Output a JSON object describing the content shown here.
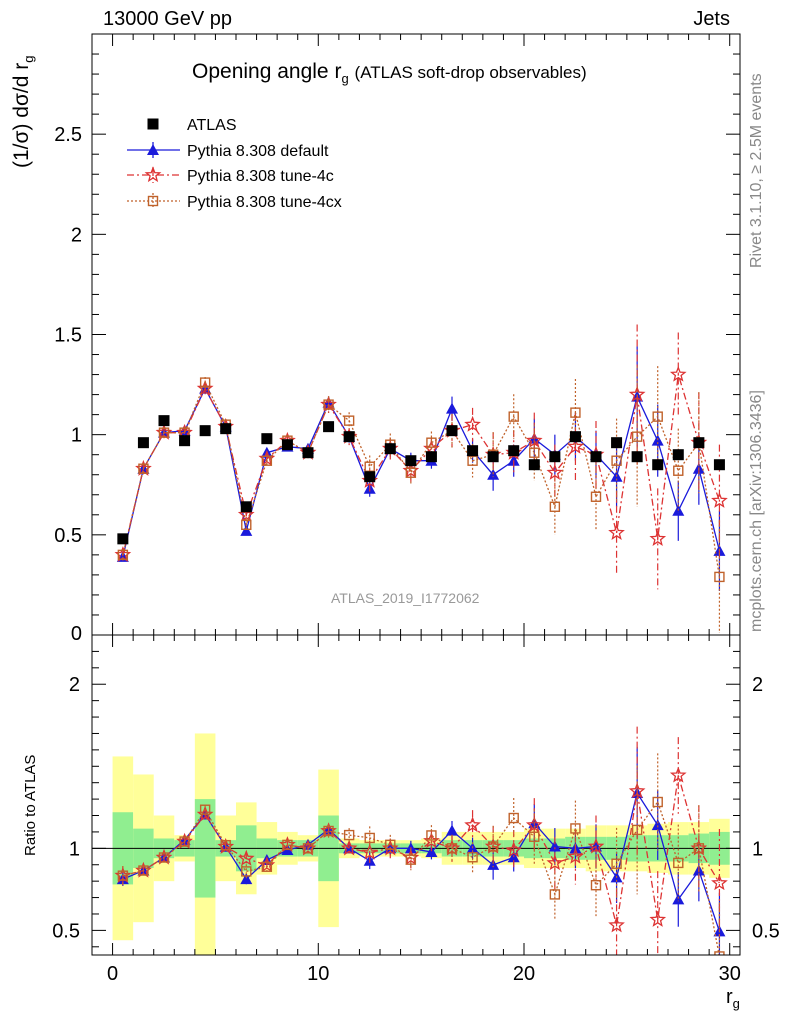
{
  "header": {
    "left": "13000 GeV pp",
    "right": "Jets"
  },
  "side_labels": {
    "rivet": "Rivet 3.1.10, ≥ 2.5M events",
    "mcplots": "mcplots.cern.ch [arXiv:1306.3436]"
  },
  "chart_data": {
    "type": "scatter",
    "title": "Opening angle r",
    "title_sub": "g",
    "title_suffix": "(ATLAS soft-drop observables)",
    "watermark": "ATLAS_2019_I1772062",
    "ylabel": "(1/σ) dσ/d r",
    "ylabel_sub": "g",
    "xlabel": "r",
    "xlabel_sub": "g",
    "ratio_ylabel": "Ratio to ATLAS",
    "xlim": [
      -1,
      30.5
    ],
    "ylim": [
      0,
      3.0
    ],
    "ratio_ylim": [
      0.35,
      2.3
    ],
    "xticks": [
      "0",
      "10",
      "20",
      "30"
    ],
    "yticks": [
      "0.5",
      "1",
      "1.5",
      "2",
      "2.5"
    ],
    "ytick0": "0",
    "ratio_yticks": [
      "0.5",
      "1",
      "2"
    ],
    "legend": [
      "ATLAS",
      "Pythia 8.308 default",
      "Pythia 8.308 tune-4c",
      "Pythia 8.308 tune-4cx"
    ],
    "colors": {
      "data": "#000000",
      "default": "#1a1adb",
      "tune4c": "#dd3333",
      "tune4cx": "#c0622b",
      "band_inner": "#90ee90",
      "band_outer": "#ffff99"
    },
    "x": [
      0.5,
      1.5,
      2.5,
      3.5,
      4.5,
      5.5,
      6.5,
      7.5,
      8.5,
      9.5,
      10.5,
      11.5,
      12.5,
      13.5,
      14.5,
      15.5,
      16.5,
      17.5,
      18.5,
      19.5,
      20.5,
      21.5,
      22.5,
      23.5,
      24.5,
      25.5,
      26.5,
      27.5,
      28.5,
      29.5
    ],
    "data": [
      0.48,
      0.96,
      1.07,
      0.97,
      1.02,
      1.03,
      0.64,
      0.98,
      0.95,
      0.91,
      1.04,
      0.99,
      0.79,
      0.93,
      0.87,
      0.89,
      1.02,
      0.92,
      0.89,
      0.92,
      0.85,
      0.89,
      0.99,
      0.89,
      0.96,
      0.89,
      0.85,
      0.9,
      0.96,
      0.85
    ],
    "series": [
      {
        "name": "Pythia 8.308 default",
        "values": [
          0.39,
          0.83,
          1.01,
          1.02,
          1.23,
          1.04,
          0.52,
          0.91,
          0.94,
          0.93,
          1.16,
          0.99,
          0.73,
          0.93,
          0.87,
          0.87,
          1.13,
          0.92,
          0.8,
          0.87,
          0.98,
          0.9,
          0.99,
          0.9,
          0.79,
          1.19,
          0.97,
          0.62,
          0.83,
          0.42
        ],
        "errors": [
          0.02,
          0.02,
          0.02,
          0.02,
          0.02,
          0.02,
          0.02,
          0.02,
          0.02,
          0.02,
          0.03,
          0.03,
          0.04,
          0.04,
          0.04,
          0.04,
          0.06,
          0.06,
          0.08,
          0.08,
          0.1,
          0.1,
          0.12,
          0.12,
          0.15,
          0.25,
          0.18,
          0.15,
          0.18,
          0.2
        ]
      },
      {
        "name": "Pythia 8.308 tune-4c",
        "values": [
          0.4,
          0.83,
          1.01,
          1.01,
          1.23,
          1.04,
          0.6,
          0.88,
          0.97,
          0.91,
          1.15,
          0.99,
          0.77,
          0.93,
          0.82,
          0.93,
          1.02,
          1.05,
          0.9,
          0.91,
          0.97,
          0.81,
          0.94,
          0.9,
          0.51,
          1.2,
          0.48,
          1.3,
          0.96,
          0.67
        ]
      },
      {
        "name": "Pythia 8.308 tune-4cx",
        "values": [
          0.4,
          0.83,
          1.01,
          1.01,
          1.26,
          1.05,
          0.55,
          0.87,
          0.97,
          0.91,
          1.15,
          1.07,
          0.84,
          0.95,
          0.81,
          0.96,
          1.02,
          0.87,
          0.9,
          1.09,
          0.91,
          0.64,
          1.11,
          0.69,
          0.87,
          0.99,
          1.09,
          0.82,
          0.96,
          0.29
        ]
      }
    ],
    "band_inner": [
      0.22,
      0.12,
      0.06,
      0.05,
      0.3,
      0.05,
      0.14,
      0.06,
      0.05,
      0.05,
      0.2,
      0.03,
      0.03,
      0.03,
      0.03,
      0.03,
      0.05,
      0.05,
      0.05,
      0.05,
      0.06,
      0.06,
      0.07,
      0.07,
      0.07,
      0.08,
      0.08,
      0.08,
      0.09,
      0.1
    ],
    "band_outer": [
      0.56,
      0.45,
      0.2,
      0.08,
      0.7,
      0.2,
      0.28,
      0.16,
      0.1,
      0.08,
      0.48,
      0.06,
      0.05,
      0.05,
      0.05,
      0.06,
      0.1,
      0.1,
      0.1,
      0.1,
      0.12,
      0.12,
      0.12,
      0.14,
      0.14,
      0.14,
      0.15,
      0.16,
      0.16,
      0.18
    ]
  }
}
